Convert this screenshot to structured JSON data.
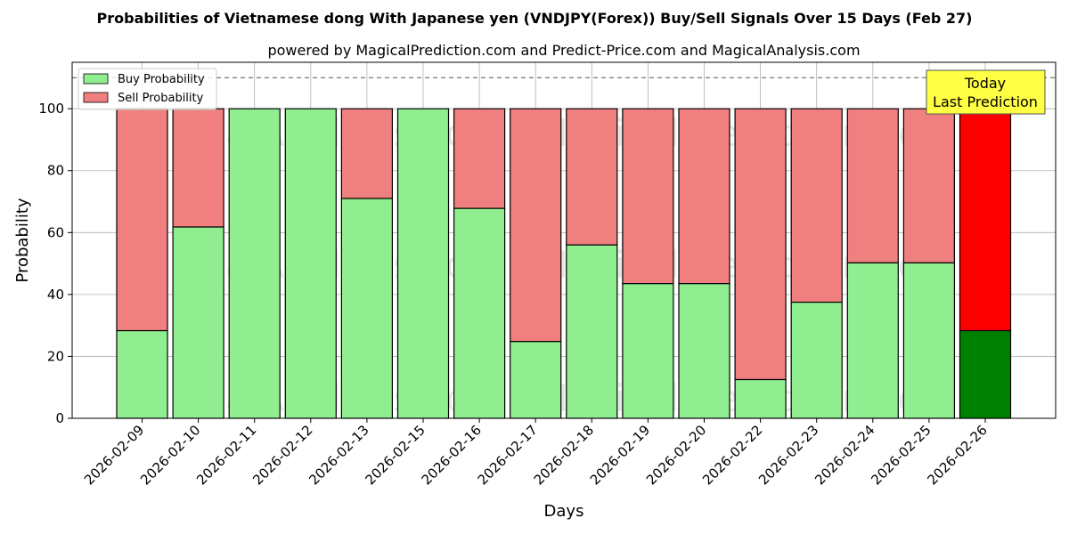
{
  "chart_data": {
    "type": "bar",
    "stacked": true,
    "title": "Probabilities of Vietnamese dong With Japanese yen (VNDJPY(Forex)) Buy/Sell Signals Over 15 Days (Feb 27)",
    "subtitle": "powered by MagicalPrediction.com and Predict-Price.com and MagicalAnalysis.com",
    "xlabel": "Days",
    "ylabel": "Probability",
    "ylim": [
      0,
      115
    ],
    "yticks": [
      0,
      20,
      40,
      60,
      80,
      100
    ],
    "reference_line": 110,
    "grid": true,
    "legend_position": "top-left",
    "categories": [
      "2026-02-09",
      "2026-02-10",
      "2026-02-11",
      "2026-02-12",
      "2026-02-13",
      "2026-02-15",
      "2026-02-16",
      "2026-02-17",
      "2026-02-18",
      "2026-02-19",
      "2026-02-20",
      "2026-02-22",
      "2026-02-23",
      "2026-02-24",
      "2026-02-25",
      "2026-02-26"
    ],
    "series": [
      {
        "name": "Buy Probability",
        "color": "#90ee90",
        "values": [
          28.3,
          61.8,
          100,
          100,
          71,
          100,
          67.8,
          24.8,
          56,
          43.5,
          43.5,
          12.5,
          37.5,
          50.2,
          50.2,
          28.3
        ]
      },
      {
        "name": "Sell Probability",
        "color": "#f08080",
        "values": [
          71.7,
          38.2,
          0,
          0,
          29,
          0,
          32.2,
          75.2,
          44,
          56.5,
          56.5,
          87.5,
          62.5,
          49.8,
          49.8,
          71.7
        ]
      }
    ],
    "highlight": {
      "index": 15,
      "buy_color": "#008000",
      "sell_color": "#ff0000"
    },
    "annotation": {
      "lines": [
        "Today",
        "Last Prediction"
      ],
      "color": "#ffff44"
    },
    "watermarks": [
      "MagicalAnalysis.com",
      "MagicalPrediction.com"
    ]
  }
}
